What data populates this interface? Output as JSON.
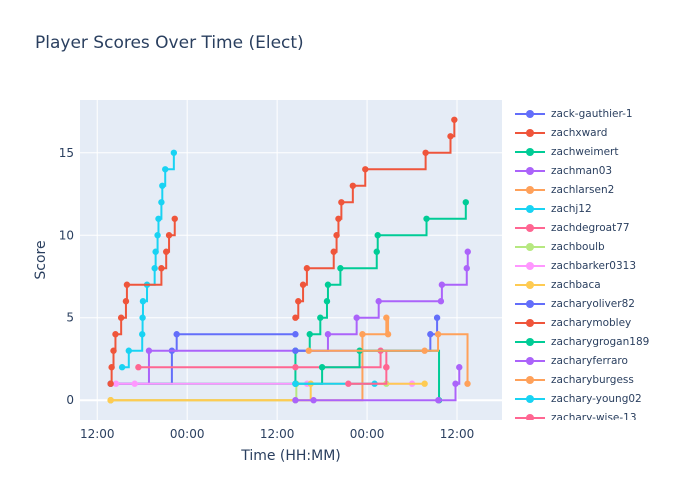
{
  "chart_data": {
    "type": "line",
    "line_shape": "step (hv) with markers",
    "title": "Player Scores Over Time (Elect)",
    "xlabel": "Time (HH:MM)",
    "ylabel": "Score",
    "x_unit": "hours after first 12:00 tick",
    "xlim": [
      -2.3,
      54
    ],
    "ylim": [
      -1.2,
      18.2
    ],
    "x_ticks": [
      {
        "v": 0,
        "label": "12:00"
      },
      {
        "v": 12,
        "label": "00:00"
      },
      {
        "v": 24,
        "label": "12:00"
      },
      {
        "v": 36,
        "label": "00:00"
      },
      {
        "v": 48,
        "label": "12:00"
      }
    ],
    "y_ticks": [
      {
        "v": 0,
        "label": "0"
      },
      {
        "v": 5,
        "label": "5"
      },
      {
        "v": 10,
        "label": "10"
      },
      {
        "v": 15,
        "label": "15"
      }
    ],
    "legend_placement": "right",
    "series": [
      {
        "name": "zack-gauthier-1",
        "color": "#636efa",
        "x": [
          1.79,
          9.96,
          10.6,
          26.44
        ],
        "y": [
          1,
          3,
          4,
          4
        ]
      },
      {
        "name": "zachxward",
        "color": "#ef553b",
        "x": [
          26.44,
          26.82,
          27.46,
          27.97,
          31.55,
          31.93,
          32.18,
          32.57,
          34.1,
          35.76,
          43.81,
          47.13,
          47.64
        ],
        "y": [
          5,
          6,
          7,
          8,
          9,
          10,
          11,
          12,
          13,
          14,
          15,
          16,
          17
        ]
      },
      {
        "name": "zachweimert",
        "color": "#00cc96",
        "x": [
          1.79,
          26.44,
          28.35,
          29.76,
          30.65,
          30.78,
          32.44,
          37.29,
          37.42,
          43.93,
          49.17
        ],
        "y": [
          1,
          3,
          4,
          5,
          6,
          7,
          8,
          9,
          10,
          11,
          12
        ]
      },
      {
        "name": "zachman03",
        "color": "#ab63fa",
        "x": [
          1.79,
          6.9,
          30.78,
          34.61,
          37.55,
          45.85,
          45.98,
          49.3,
          49.43
        ],
        "y": [
          1,
          3,
          4,
          5,
          6,
          6,
          7,
          8,
          9
        ]
      },
      {
        "name": "zachlarsen2",
        "color": "#ffa15a",
        "x": [
          1.79,
          35.38,
          38.57,
          38.8
        ],
        "y": [
          0,
          4,
          5,
          4
        ]
      },
      {
        "name": "zachj12",
        "color": "#19d3f3",
        "x": [
          3.32,
          4.21,
          6.0,
          6.05,
          6.1,
          6.64,
          7.66,
          7.79,
          8.05,
          8.17,
          8.56,
          8.68,
          9.07,
          10.22
        ],
        "y": [
          2,
          3,
          4,
          5,
          6,
          7,
          8,
          9,
          10,
          11,
          12,
          13,
          14,
          15
        ]
      },
      {
        "name": "zachdegroat77",
        "color": "#ff6692",
        "x": [
          5.49,
          26.44,
          37.8,
          38.57
        ],
        "y": [
          2,
          2,
          3,
          2
        ]
      },
      {
        "name": "zachboulb",
        "color": "#b6e880",
        "x": [
          1.79,
          26.44,
          26.56,
          38.57
        ],
        "y": [
          0,
          0,
          1,
          1
        ]
      },
      {
        "name": "zachbarker0313",
        "color": "#ff97ff",
        "x": [
          2.5,
          5.0,
          28.0,
          42.0
        ],
        "y": [
          1,
          1,
          1,
          1
        ]
      },
      {
        "name": "zachbaca",
        "color": "#fecb52",
        "x": [
          1.79,
          28.48,
          43.68
        ],
        "y": [
          0,
          1,
          1
        ]
      },
      {
        "name": "zacharyoliver82",
        "color": "#636efa",
        "x": [
          26.44,
          44.44,
          45.34
        ],
        "y": [
          3,
          4,
          5
        ]
      },
      {
        "name": "zacharymobley",
        "color": "#ef553b",
        "x": [
          1.79,
          1.92,
          2.17,
          2.43,
          3.19,
          3.83,
          3.96,
          8.56,
          9.2,
          9.58,
          10.34
        ],
        "y": [
          1,
          2,
          3,
          4,
          5,
          6,
          7,
          8,
          9,
          10,
          11
        ]
      },
      {
        "name": "zacharygrogan189",
        "color": "#00cc96",
        "x": [
          26.44,
          30.0,
          35.0,
          45.6
        ],
        "y": [
          1,
          2,
          3,
          0
        ]
      },
      {
        "name": "zacharyferraro",
        "color": "#ab63fa",
        "x": [
          26.44,
          28.86,
          45.5,
          47.8,
          48.3
        ],
        "y": [
          0,
          0,
          0,
          1,
          2
        ]
      },
      {
        "name": "zacharyburgess",
        "color": "#ffa15a",
        "x": [
          28.22,
          43.68,
          45.47,
          49.4
        ],
        "y": [
          3,
          3,
          4,
          1
        ]
      },
      {
        "name": "zachary-young02",
        "color": "#19d3f3",
        "x": [
          26.44,
          37.0
        ],
        "y": [
          1,
          1
        ]
      },
      {
        "name": "zachary-wise-13",
        "color": "#ff6692",
        "x": [
          33.5,
          38.57
        ],
        "y": [
          1,
          2
        ]
      }
    ]
  }
}
